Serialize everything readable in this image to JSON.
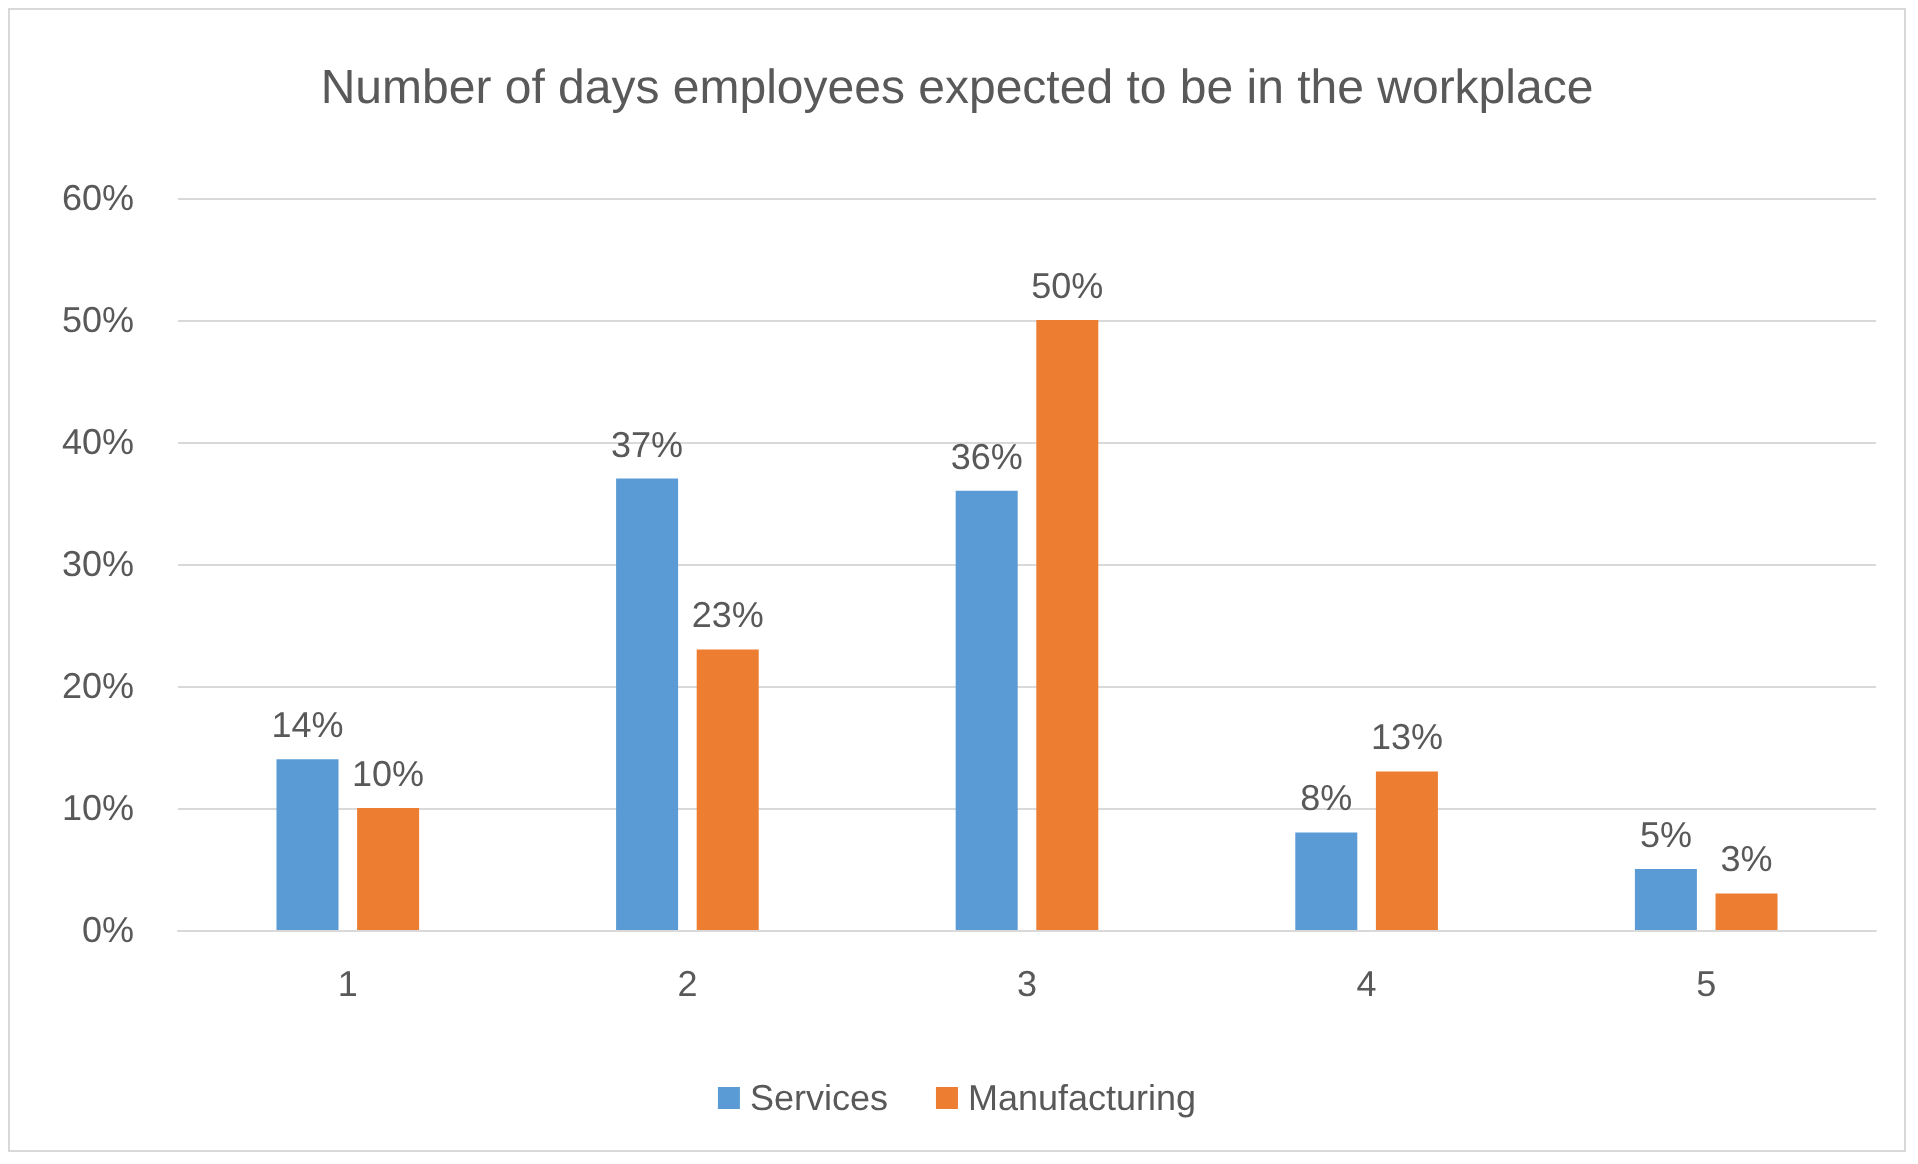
{
  "chart_data": {
    "type": "bar",
    "title": "Number of days employees expected to be in the workplace",
    "categories": [
      "1",
      "2",
      "3",
      "4",
      "5"
    ],
    "series": [
      {
        "name": "Services",
        "color": "#5b9bd5",
        "values": [
          14,
          37,
          36,
          8,
          5
        ],
        "value_labels": [
          "14%",
          "37%",
          "36%",
          "8%",
          "5%"
        ]
      },
      {
        "name": "Manufacturing",
        "color": "#ed7d31",
        "values": [
          10,
          23,
          50,
          13,
          3
        ],
        "value_labels": [
          "10%",
          "23%",
          "50%",
          "13%",
          "3%"
        ]
      }
    ],
    "ylim": [
      0,
      60
    ],
    "yticks": [
      {
        "value": 0,
        "label": "0%"
      },
      {
        "value": 10,
        "label": "10%"
      },
      {
        "value": 20,
        "label": "20%"
      },
      {
        "value": 30,
        "label": "30%"
      },
      {
        "value": 40,
        "label": "40%"
      },
      {
        "value": 50,
        "label": "50%"
      },
      {
        "value": 60,
        "label": "60%"
      }
    ],
    "grid": "y",
    "legend": "bottom"
  }
}
